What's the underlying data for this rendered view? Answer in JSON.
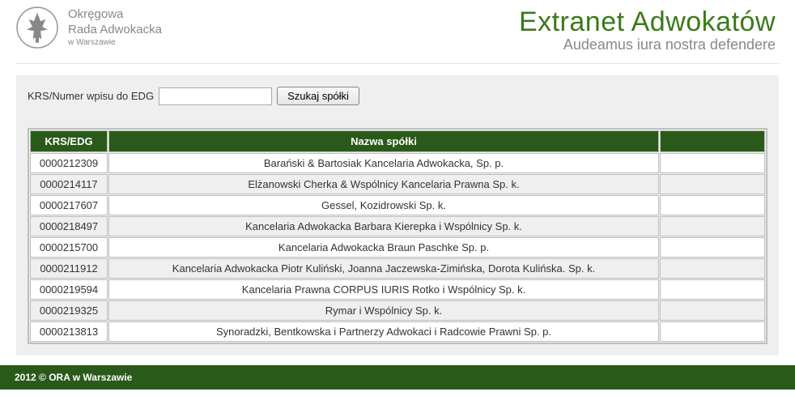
{
  "header": {
    "org": {
      "line1": "Okręgowa",
      "line2": "Rada Adwokacka",
      "line3": "w Warszawie"
    },
    "brand": {
      "title": "Extranet Adwokatów",
      "subtitle": "Audeamus iura nostra defendere"
    }
  },
  "search": {
    "label": "KRS/Numer wpisu do EDG",
    "value": "",
    "button": "Szukaj spółki"
  },
  "table": {
    "columns": {
      "krs": "KRS/EDG",
      "name": "Nazwa spółki",
      "extra": ""
    },
    "rows": [
      {
        "krs": "0000212309",
        "name": "Barański & Bartosiak Kancelaria Adwokacka, Sp. p."
      },
      {
        "krs": "0000214117",
        "name": "Elżanowski Cherka & Wspólnicy Kancelaria Prawna Sp. k."
      },
      {
        "krs": "0000217607",
        "name": "Gessel, Kozidrowski Sp. k."
      },
      {
        "krs": "0000218497",
        "name": "Kancelaria Adwokacka Barbara Kierepka i Wspólnicy Sp. k."
      },
      {
        "krs": "0000215700",
        "name": "Kancelaria Adwokacka Braun Paschke Sp. p."
      },
      {
        "krs": "0000211912",
        "name": "Kancelaria Adwokacka Piotr Kuliński, Joanna Jaczewska-Zimińska, Dorota Kulińska. Sp. k."
      },
      {
        "krs": "0000219594",
        "name": "Kancelaria Prawna CORPUS IURIS Rotko i Wspólnicy Sp. k."
      },
      {
        "krs": "0000219325",
        "name": "Rymar i Wspólnicy Sp. k."
      },
      {
        "krs": "0000213813",
        "name": "Synoradzki, Bentkowska i Partnerzy Adwokaci i Radcowie Prawni Sp. p."
      }
    ]
  },
  "footer": {
    "text": "2012 © ORA w Warszawie"
  },
  "colors": {
    "brand_green": "#3a7a1a",
    "header_dark_green": "#2a5a1a",
    "panel_grey": "#efefef",
    "border_grey": "#bfbfbf",
    "text_grey": "#888888"
  }
}
